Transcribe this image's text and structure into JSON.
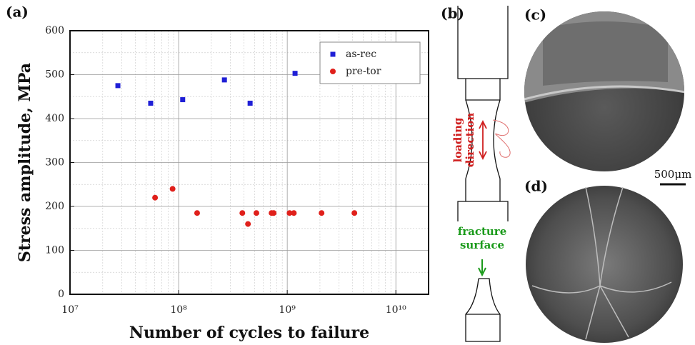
{
  "chart_data": {
    "type": "scatter",
    "xlabel": "Number of cycles to failure",
    "ylabel": "Stress amplitude, MPa",
    "xscale": "log",
    "xlim": [
      10000000,
      20000000000
    ],
    "ylim": [
      0,
      600
    ],
    "xticks": [
      {
        "value": 10000000,
        "label": "10⁷"
      },
      {
        "value": 100000000,
        "label": "10⁸"
      },
      {
        "value": 1000000000,
        "label": "10⁹"
      },
      {
        "value": 10000000000,
        "label": "10¹⁰"
      }
    ],
    "yticks": [
      0,
      100,
      200,
      300,
      400,
      500,
      600
    ],
    "grid": true,
    "legend": "upper right",
    "series": [
      {
        "name": "as-rec",
        "color": "#1f1fd6",
        "marker": "square",
        "x": [
          27600000,
          55300000,
          109000000,
          264000000,
          455000000,
          1180000000
        ],
        "values": [
          475,
          435,
          443,
          488,
          435,
          503
        ]
      },
      {
        "name": "pre-tor",
        "color": "#e0201b",
        "marker": "circle",
        "x": [
          60700000,
          88000000,
          148000000,
          386000000,
          435000000,
          520000000,
          717000000,
          750000000,
          1050000000,
          1150000000,
          2070000000,
          4150000000
        ],
        "values": [
          220,
          240,
          185,
          185,
          160,
          185,
          185,
          185,
          185,
          185,
          185,
          185
        ]
      }
    ]
  },
  "panel_labels": [
    "(a)",
    "(b)",
    "(c)",
    "(d)"
  ],
  "diagram": {
    "loading_label": [
      "loading",
      "direction"
    ],
    "fracture_label": [
      "fracture",
      "surface"
    ]
  },
  "scale_bar": "500μm"
}
